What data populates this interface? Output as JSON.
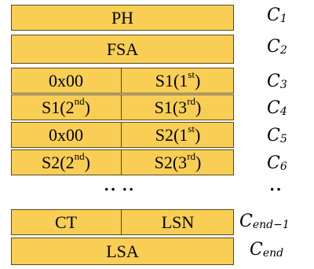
{
  "rows": [
    {
      "full": "PH",
      "label_base": "C",
      "label_sub": "1"
    },
    {
      "full": "FSA",
      "label_base": "C",
      "label_sub": "2"
    },
    {
      "left": "0x00",
      "right_base": "S1(1",
      "right_sup": "st",
      "label_base": "C",
      "label_sub": "3"
    },
    {
      "left_base": "S1(2",
      "left_sup": "nd",
      "right_base": "S1(3",
      "right_sup": "rd",
      "label_base": "C",
      "label_sub": "4"
    },
    {
      "left": "0x00",
      "right_base": "S2(1",
      "right_sup": "st",
      "label_base": "C",
      "label_sub": "5"
    },
    {
      "left_base": "S2(2",
      "left_sup": "nd",
      "right_base": "S2(3",
      "right_sup": "rd",
      "label_base": "C",
      "label_sub": "6"
    }
  ],
  "ellipsis": {
    "left": "·· ··",
    "right": "··"
  },
  "tail": [
    {
      "left": "CT",
      "right": "LSN",
      "label_base": "C",
      "label_sub": "end−1"
    },
    {
      "full": "LSA",
      "label_base": "C",
      "label_sub": "end"
    }
  ],
  "colors": {
    "block_fill": "#F8CE55",
    "border": "#5a4a1a"
  }
}
